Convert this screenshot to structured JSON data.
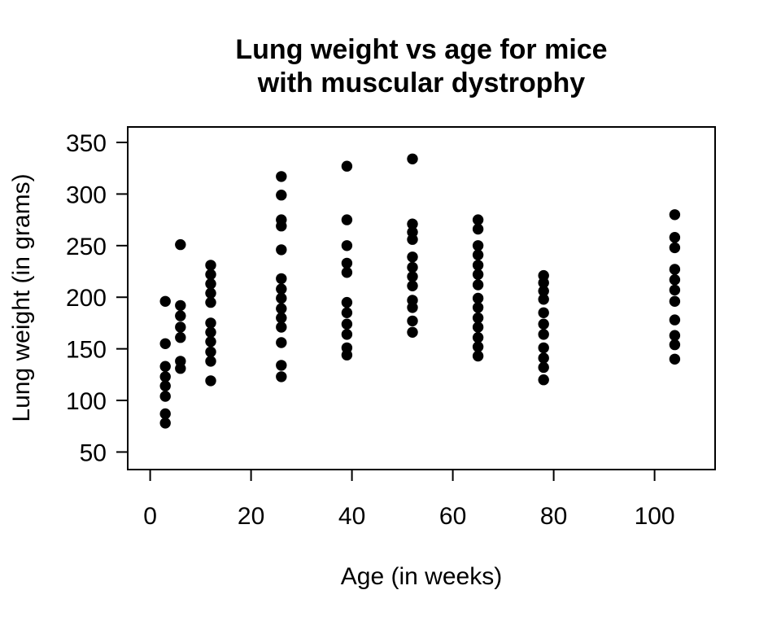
{
  "chart_data": {
    "type": "scatter",
    "title_line1": "Lung weight vs age for mice",
    "title_line2": "with muscular dystrophy",
    "xlabel": "Age (in weeks)",
    "ylabel": "Lung weight (in grams)",
    "x_ticks": [
      0,
      20,
      40,
      60,
      80,
      100
    ],
    "y_ticks": [
      50,
      100,
      150,
      200,
      250,
      300,
      350
    ],
    "xlim": [
      -4.45,
      112.0
    ],
    "ylim": [
      33,
      365
    ],
    "grid": false,
    "legend": "none",
    "point_color": "#000000",
    "point_radius": 6.7,
    "points": [
      [
        3,
        196
      ],
      [
        3,
        155
      ],
      [
        3,
        133
      ],
      [
        3,
        123
      ],
      [
        3,
        114
      ],
      [
        3,
        104
      ],
      [
        3,
        87
      ],
      [
        3,
        78
      ],
      [
        6,
        251
      ],
      [
        6,
        192
      ],
      [
        6,
        182
      ],
      [
        6,
        171
      ],
      [
        6,
        161
      ],
      [
        6,
        138
      ],
      [
        6,
        131
      ],
      [
        12,
        231
      ],
      [
        12,
        222
      ],
      [
        12,
        213
      ],
      [
        12,
        204
      ],
      [
        12,
        195
      ],
      [
        12,
        175
      ],
      [
        12,
        166
      ],
      [
        12,
        157
      ],
      [
        12,
        147
      ],
      [
        12,
        138
      ],
      [
        12,
        119
      ],
      [
        26,
        317
      ],
      [
        26,
        299
      ],
      [
        26,
        275
      ],
      [
        26,
        269
      ],
      [
        26,
        246
      ],
      [
        26,
        218
      ],
      [
        26,
        208
      ],
      [
        26,
        199
      ],
      [
        26,
        189
      ],
      [
        26,
        180
      ],
      [
        26,
        171
      ],
      [
        26,
        156
      ],
      [
        26,
        134
      ],
      [
        26,
        123
      ],
      [
        39,
        327
      ],
      [
        39,
        275
      ],
      [
        39,
        250
      ],
      [
        39,
        233
      ],
      [
        39,
        224
      ],
      [
        39,
        195
      ],
      [
        39,
        185
      ],
      [
        39,
        174
      ],
      [
        39,
        164
      ],
      [
        39,
        151
      ],
      [
        39,
        144
      ],
      [
        52,
        334
      ],
      [
        52,
        271
      ],
      [
        52,
        263
      ],
      [
        52,
        256
      ],
      [
        52,
        239
      ],
      [
        52,
        229
      ],
      [
        52,
        220
      ],
      [
        52,
        211
      ],
      [
        52,
        197
      ],
      [
        52,
        190
      ],
      [
        52,
        177
      ],
      [
        52,
        166
      ],
      [
        65,
        275
      ],
      [
        65,
        266
      ],
      [
        65,
        250
      ],
      [
        65,
        241
      ],
      [
        65,
        231
      ],
      [
        65,
        222
      ],
      [
        65,
        212
      ],
      [
        65,
        199
      ],
      [
        65,
        190
      ],
      [
        65,
        180
      ],
      [
        65,
        171
      ],
      [
        65,
        161
      ],
      [
        65,
        152
      ],
      [
        65,
        143
      ],
      [
        78,
        221
      ],
      [
        78,
        214
      ],
      [
        78,
        206
      ],
      [
        78,
        198
      ],
      [
        78,
        185
      ],
      [
        78,
        174
      ],
      [
        78,
        164
      ],
      [
        78,
        151
      ],
      [
        78,
        141
      ],
      [
        78,
        132
      ],
      [
        78,
        120
      ],
      [
        104,
        280
      ],
      [
        104,
        258
      ],
      [
        104,
        248
      ],
      [
        104,
        227
      ],
      [
        104,
        217
      ],
      [
        104,
        207
      ],
      [
        104,
        196
      ],
      [
        104,
        178
      ],
      [
        104,
        163
      ],
      [
        104,
        154
      ],
      [
        104,
        140
      ]
    ]
  }
}
